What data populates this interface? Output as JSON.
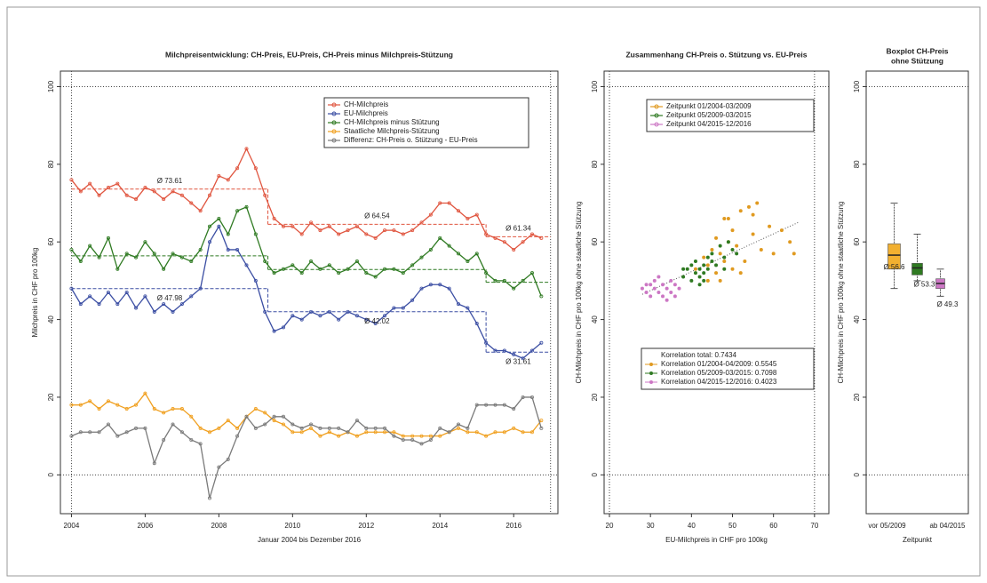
{
  "chart_data": [
    {
      "type": "line",
      "title": "Milchpreisentwicklung: CH-Preis, EU-Preis, CH-Preis minus Milchpreis-Stützung",
      "x_label": "Januar 2004 bis Dezember 2016",
      "y_label": "Milchpreis in CHF pro 100kg",
      "xlim": [
        2003.7,
        2017.2
      ],
      "xticks": [
        2004,
        2006,
        2008,
        2010,
        2012,
        2014,
        2016
      ],
      "ylim": [
        -10,
        104
      ],
      "yticks": [
        0,
        20,
        40,
        60,
        80,
        100
      ],
      "hlines": [
        0,
        100
      ],
      "vlines": [
        2004,
        2017
      ],
      "periods": [
        2004,
        2009.33,
        2015.25,
        2017
      ],
      "x": [
        2004,
        2004.25,
        2004.5,
        2004.75,
        2005,
        2005.25,
        2005.5,
        2005.75,
        2006,
        2006.25,
        2006.5,
        2006.75,
        2007,
        2007.25,
        2007.5,
        2007.75,
        2008,
        2008.25,
        2008.5,
        2008.75,
        2009,
        2009.25,
        2009.5,
        2009.75,
        2010,
        2010.25,
        2010.5,
        2010.75,
        2011,
        2011.25,
        2011.5,
        2011.75,
        2012,
        2012.25,
        2012.5,
        2012.75,
        2013,
        2013.25,
        2013.5,
        2013.75,
        2014,
        2014.25,
        2014.5,
        2014.75,
        2015,
        2015.25,
        2015.5,
        2015.75,
        2016,
        2016.25,
        2016.5,
        2016.75
      ],
      "legend": "top-right",
      "series": [
        {
          "name": "CH-Milchpreis",
          "color": "#e0553f",
          "values": [
            76,
            73,
            75,
            72,
            74,
            75,
            72,
            71,
            74,
            73,
            71,
            73,
            72,
            70,
            68,
            72,
            77,
            76,
            79,
            84,
            79,
            72,
            66,
            64,
            64,
            62,
            65,
            63,
            64,
            62,
            63,
            64,
            62,
            61,
            63,
            63,
            62,
            63,
            65,
            67,
            70,
            70,
            68,
            66,
            67,
            62,
            61,
            60,
            58,
            60,
            62,
            61
          ],
          "means": [
            73.61,
            64.54,
            61.34
          ],
          "mean_labels": [
            "Ø 73.61",
            "Ø 64.54",
            "Ø 61.34"
          ]
        },
        {
          "name": "EU-Milchpreis",
          "color": "#3b4ea3",
          "values": [
            48,
            44,
            46,
            44,
            47,
            44,
            47,
            43,
            46,
            42,
            44,
            42,
            44,
            46,
            48,
            60,
            64,
            58,
            58,
            54,
            50,
            42,
            37,
            38,
            41,
            40,
            42,
            41,
            42,
            40,
            42,
            41,
            40,
            39,
            41,
            43,
            43,
            45,
            48,
            49,
            49,
            48,
            44,
            43,
            39,
            34,
            32,
            32,
            31,
            30,
            32,
            34
          ],
          "means": [
            47.98,
            42.02,
            31.61
          ],
          "mean_labels": [
            "Ø 47.98",
            "Ø 42.02",
            "Ø 31.61"
          ]
        },
        {
          "name": "CH-Milchpreis minus Stützung",
          "color": "#2f7a22",
          "values": [
            58,
            55,
            59,
            56,
            61,
            53,
            57,
            56,
            60,
            57,
            53,
            57,
            56,
            55,
            58,
            64,
            66,
            62,
            68,
            69,
            62,
            55,
            52,
            53,
            54,
            52,
            55,
            53,
            54,
            52,
            53,
            55,
            52,
            51,
            53,
            53,
            52,
            54,
            56,
            58,
            61,
            59,
            57,
            55,
            57,
            52,
            50,
            50,
            48,
            50,
            52,
            46
          ],
          "means": [
            56.4,
            52.9,
            49.6
          ]
        },
        {
          "name": "Staatliche Milchpreis-Stützung",
          "color": "#f0a020",
          "values": [
            18,
            18,
            19,
            17,
            19,
            18,
            17,
            18,
            21,
            17,
            16,
            17,
            17,
            15,
            12,
            11,
            12,
            14,
            12,
            15,
            17,
            16,
            14,
            13,
            11,
            11,
            12,
            10,
            11,
            10,
            11,
            10,
            11,
            11,
            11,
            11,
            10,
            10,
            10,
            10,
            10,
            11,
            12,
            11,
            11,
            10,
            11,
            11,
            12,
            11,
            11,
            14
          ]
        },
        {
          "name": "Differenz: CH-Preis o. Stützung - EU-Preis",
          "color": "#7a7a7a",
          "values": [
            10,
            11,
            11,
            11,
            13,
            10,
            11,
            12,
            12,
            3,
            9,
            13,
            11,
            9,
            8,
            -6,
            2,
            4,
            10,
            15,
            12,
            13,
            15,
            15,
            13,
            12,
            13,
            12,
            12,
            12,
            11,
            14,
            12,
            12,
            12,
            10,
            9,
            9,
            8,
            9,
            12,
            11,
            13,
            12,
            18,
            18,
            18,
            18,
            17,
            20,
            20,
            12
          ]
        }
      ]
    },
    {
      "type": "scatter",
      "title": "Zusammenhang CH-Preis o. Stützung vs. EU-Preis",
      "x_label": "EU-Milchpreis in CHF pro 100kg",
      "y_label": "CH-Milchpreis in CHF pro 100kg ohne staatliche Stützung",
      "xlim": [
        18.7,
        73.5
      ],
      "xticks": [
        20,
        30,
        40,
        50,
        60,
        70
      ],
      "ylim": [
        -10,
        104
      ],
      "yticks": [
        0,
        20,
        40,
        60,
        80,
        100
      ],
      "hlines": [
        0,
        100
      ],
      "vlines": [
        20,
        70
      ],
      "legend": "top-right",
      "series": [
        {
          "name": "Zeitpunkt 01/2004-03/2009",
          "color": "#e09a20",
          "x": [
            41,
            43,
            44,
            45,
            46,
            47,
            48,
            48,
            49,
            50,
            51,
            52,
            53,
            54,
            55,
            56,
            57,
            59,
            60,
            62,
            64,
            65,
            46,
            50,
            52,
            44,
            47,
            49,
            55
          ],
          "values": [
            53,
            56,
            54,
            58,
            61,
            57,
            66,
            55,
            60,
            63,
            59,
            68,
            55,
            69,
            62,
            70,
            58,
            64,
            57,
            63,
            60,
            57,
            52,
            53,
            52,
            50,
            50,
            66,
            67
          ]
        },
        {
          "name": "Zeitpunkt 05/2009-03/2015",
          "color": "#2f7a22",
          "x": [
            38,
            39,
            40,
            41,
            41,
            42,
            42,
            43,
            43,
            44,
            44,
            45,
            45,
            46,
            47,
            48,
            48,
            49,
            50,
            51,
            40,
            42,
            38,
            43
          ],
          "values": [
            51,
            53,
            50,
            52,
            55,
            53,
            51,
            54,
            52,
            56,
            53,
            55,
            57,
            54,
            59,
            56,
            53,
            60,
            58,
            57,
            54,
            49,
            53,
            50
          ]
        },
        {
          "name": "Zeitpunkt 04/2015-12/2016",
          "color": "#cc77c4",
          "x": [
            28,
            29,
            29,
            30,
            31,
            31,
            32,
            33,
            33,
            34,
            35,
            35,
            36,
            37,
            30,
            32,
            36,
            34
          ],
          "values": [
            48,
            47,
            49,
            46,
            48,
            50,
            47,
            49,
            46,
            48,
            50,
            47,
            49,
            48,
            49,
            51,
            46,
            45
          ]
        }
      ],
      "trend_line": {
        "x": [
          28,
          66
        ],
        "y": [
          46.5,
          65
        ]
      },
      "correlation_legend": [
        "Korrelation total: 0.7434",
        "Korrelation 01/2004-04/2009: 0.5545",
        "Korrelation 05/2009-03/2015: 0.7098",
        "Korrelation 04/2015-12/2016: 0.4023"
      ]
    },
    {
      "type": "box",
      "title": [
        "Boxplot CH-Preis",
        "ohne Stützung"
      ],
      "x_label": "Zeitpunkt",
      "y_label": "CH-Milchpreis in CHF pro 100kg ohne staatliche Stützung",
      "ylim": [
        -10,
        104
      ],
      "yticks": [
        0,
        20,
        40,
        60,
        80,
        100
      ],
      "hlines": [
        0,
        100
      ],
      "categories": [
        "vor 05/2009",
        null,
        "ab 04/2015"
      ],
      "colors": [
        "#f2b030",
        "#2f7a22",
        "#cc77c4"
      ],
      "min": [
        48,
        50,
        46
      ],
      "q1": [
        53,
        51.5,
        48
      ],
      "median": [
        56.6,
        53.3,
        49.3
      ],
      "q3": [
        59.5,
        54.5,
        50.5
      ],
      "max": [
        70,
        62,
        53
      ],
      "value_labels": [
        "Ø:56.6",
        "Ø 53.3",
        "Ø 49.3"
      ]
    }
  ]
}
